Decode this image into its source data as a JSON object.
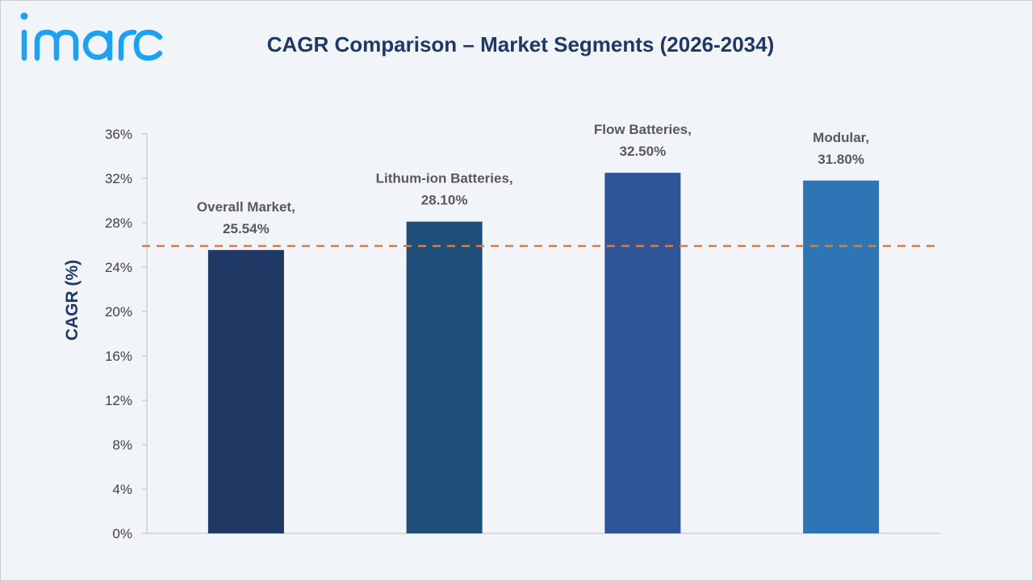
{
  "brand": {
    "logo_text": "imarc",
    "logo_color": "#1da1f2"
  },
  "chart_data": {
    "type": "bar",
    "title": "CAGR Comparison – Market Segments (2026-2034)",
    "xlabel": "",
    "ylabel": "CAGR (%)",
    "ylim": [
      0,
      36
    ],
    "yticks": [
      "0%",
      "4%",
      "8%",
      "12%",
      "16%",
      "20%",
      "24%",
      "28%",
      "32%",
      "36%"
    ],
    "ytick_values": [
      0,
      4,
      8,
      12,
      16,
      20,
      24,
      28,
      32,
      36
    ],
    "grid": false,
    "legend": "none",
    "categories": [
      "Overall Market",
      "Lithum-ion Batteries",
      "Flow Batteries",
      "Modular"
    ],
    "values": [
      25.54,
      28.1,
      32.5,
      31.8
    ],
    "data_labels": [
      [
        "Overall Market,",
        "25.54%"
      ],
      [
        "Lithum-ion Batteries,",
        "28.10%"
      ],
      [
        "Flow Batteries,",
        "32.50%"
      ],
      [
        "Modular,",
        "31.80%"
      ]
    ],
    "bar_colors": [
      "#203864",
      "#1f4e79",
      "#2f5597",
      "#2e75b6"
    ],
    "reference_line": {
      "value": 25.9,
      "color": "#e07b39",
      "style": "dashed"
    }
  }
}
